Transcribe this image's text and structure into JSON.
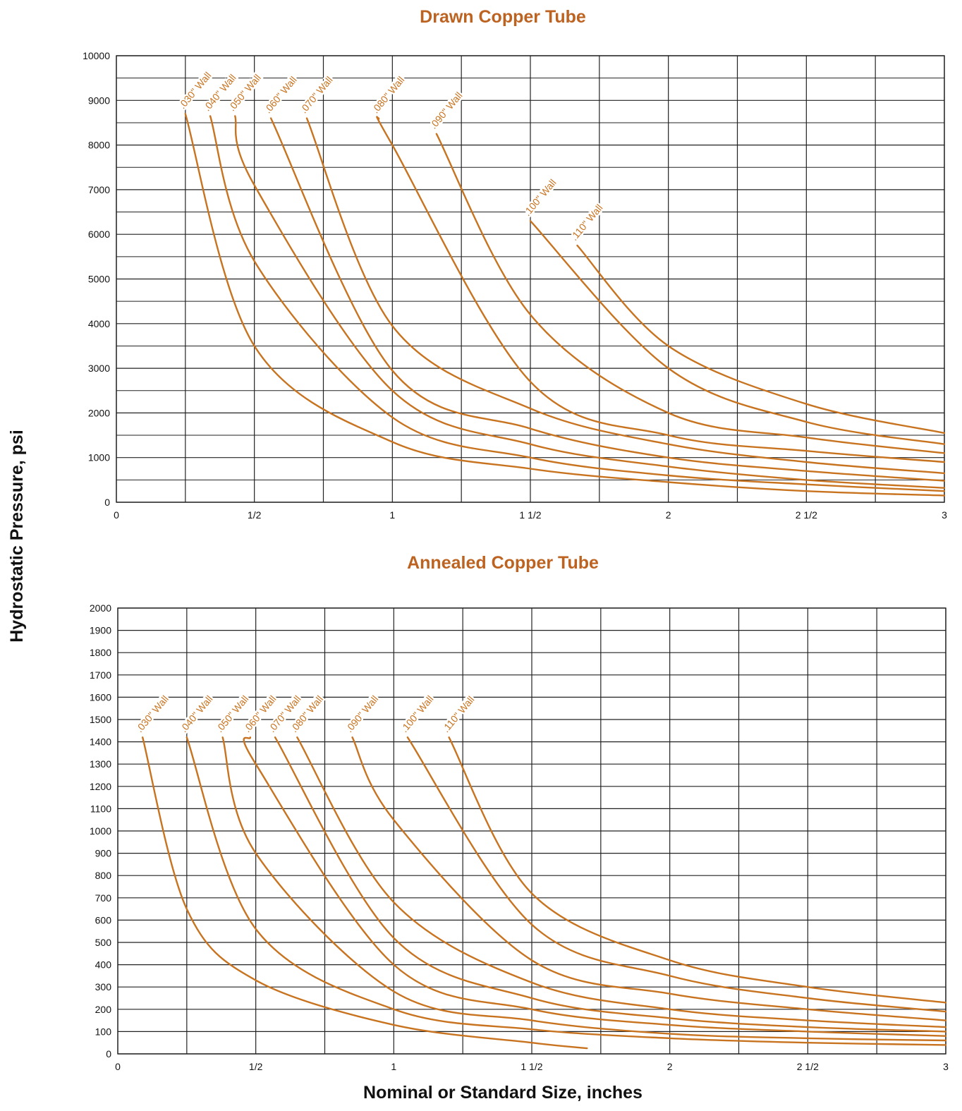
{
  "ylabel": "Hydrostatic Pressure, psi",
  "xlabel": "Nominal or Standard Size, inches",
  "colors": {
    "curve": "#c8731f",
    "title": "#bd6322",
    "grid": "#222222"
  },
  "chart_data": [
    {
      "type": "line",
      "title": "Drawn Copper Tube",
      "xlim": [
        0,
        3
      ],
      "ylim": [
        0,
        10000
      ],
      "yticks": [
        0,
        1000,
        2000,
        3000,
        4000,
        5000,
        6000,
        7000,
        8000,
        9000,
        10000
      ],
      "ytick_labels": [
        "0",
        "1000",
        "2000",
        "3000",
        "4000",
        "5000",
        "6000",
        "7000",
        "8000",
        "9000",
        "10000"
      ],
      "xticks": [
        0,
        0.5,
        1,
        1.5,
        2,
        2.5,
        3
      ],
      "xtick_labels": [
        "0",
        "1/2",
        "1",
        "1 1/2",
        "2",
        "2 1/2",
        "3"
      ],
      "grid": true,
      "series": [
        {
          "name": ".030\" Wall",
          "x": [
            0.25,
            0.5,
            1,
            1.5,
            2,
            2.5,
            3
          ],
          "y": [
            8700,
            3500,
            1350,
            750,
            450,
            250,
            150
          ]
        },
        {
          "name": ".040\" Wall",
          "x": [
            0.34,
            0.5,
            1,
            1.5,
            2,
            2.5,
            3
          ],
          "y": [
            8650,
            5400,
            1900,
            1000,
            600,
            400,
            250
          ]
        },
        {
          "name": ".050\" Wall",
          "x": [
            0.43,
            0.5,
            1,
            1.5,
            2,
            2.5,
            3
          ],
          "y": [
            8650,
            7100,
            2500,
            1300,
            800,
            500,
            320
          ]
        },
        {
          "name": ".060\" Wall",
          "x": [
            0.56,
            1,
            1.5,
            2,
            2.5,
            3
          ],
          "y": [
            8600,
            2950,
            1650,
            1000,
            700,
            480
          ]
        },
        {
          "name": ".070\" Wall",
          "x": [
            0.69,
            1,
            1.5,
            2,
            2.5,
            3
          ],
          "y": [
            8600,
            3950,
            2100,
            1300,
            900,
            650
          ]
        },
        {
          "name": ".080\" Wall",
          "x": [
            0.95,
            1,
            1.5,
            2,
            2.5,
            3
          ],
          "y": [
            8600,
            8000,
            2700,
            1500,
            1150,
            900
          ]
        },
        {
          "name": ".090\" Wall",
          "x": [
            1.16,
            1.5,
            2,
            2.5,
            3
          ],
          "y": [
            8250,
            4200,
            2000,
            1450,
            1100
          ]
        },
        {
          "name": ".100\" Wall",
          "x": [
            1.5,
            2,
            2.5,
            3
          ],
          "y": [
            6300,
            3000,
            1800,
            1300
          ]
        },
        {
          "name": ".110\" Wall",
          "x": [
            1.67,
            2,
            2.5,
            3
          ],
          "y": [
            5750,
            3500,
            2200,
            1550
          ]
        }
      ]
    },
    {
      "type": "line",
      "title": "Annealed Copper Tube",
      "xlim": [
        0,
        3
      ],
      "ylim": [
        0,
        2000
      ],
      "yticks": [
        0,
        100,
        200,
        300,
        400,
        500,
        600,
        700,
        800,
        900,
        1000,
        1100,
        1200,
        1300,
        1400,
        1500,
        1600,
        1700,
        1800,
        1900,
        2000
      ],
      "ytick_labels": [
        "0",
        "100",
        "200",
        "300",
        "400",
        "500",
        "600",
        "700",
        "800",
        "900",
        "1000",
        "1100",
        "1200",
        "1300",
        "1400",
        "1500",
        "1600",
        "1700",
        "1800",
        "1900",
        "2000"
      ],
      "xticks": [
        0,
        0.5,
        1,
        1.5,
        2,
        2.5,
        3
      ],
      "xtick_labels": [
        "0",
        "1/2",
        "1",
        "1 1/2",
        "2",
        "2 1/2",
        "3"
      ],
      "grid": true,
      "series": [
        {
          "name": ".030\" Wall",
          "x": [
            0.09,
            0.25,
            0.5,
            1,
            1.5,
            1.7
          ],
          "y": [
            1420,
            650,
            330,
            130,
            50,
            25
          ]
        },
        {
          "name": ".040\" Wall",
          "x": [
            0.25,
            0.5,
            1,
            1.5,
            2,
            2.5,
            3
          ],
          "y": [
            1420,
            560,
            200,
            110,
            70,
            50,
            40
          ]
        },
        {
          "name": ".050\" Wall",
          "x": [
            0.38,
            0.5,
            1,
            1.5,
            2,
            2.5,
            3
          ],
          "y": [
            1420,
            900,
            280,
            150,
            90,
            70,
            60
          ]
        },
        {
          "name": ".060\" Wall",
          "x": [
            0.48,
            0.5,
            1,
            1.5,
            2,
            2.5,
            3
          ],
          "y": [
            1420,
            1300,
            400,
            200,
            130,
            100,
            80
          ]
        },
        {
          "name": ".070\" Wall",
          "x": [
            0.57,
            1,
            1.5,
            2,
            2.5,
            3
          ],
          "y": [
            1420,
            520,
            250,
            160,
            120,
            100
          ]
        },
        {
          "name": ".080\" Wall",
          "x": [
            0.65,
            1,
            1.5,
            2,
            2.5,
            3
          ],
          "y": [
            1420,
            680,
            320,
            200,
            150,
            120
          ]
        },
        {
          "name": ".090\" Wall",
          "x": [
            0.85,
            1,
            1.5,
            2,
            2.5,
            3
          ],
          "y": [
            1420,
            1050,
            420,
            270,
            200,
            150
          ]
        },
        {
          "name": ".100\" Wall",
          "x": [
            1.05,
            1.5,
            2,
            2.5,
            3
          ],
          "y": [
            1420,
            580,
            350,
            250,
            190
          ]
        },
        {
          "name": ".110\" Wall",
          "x": [
            1.2,
            1.5,
            2,
            2.5,
            3
          ],
          "y": [
            1420,
            720,
            420,
            300,
            230
          ]
        }
      ]
    }
  ]
}
